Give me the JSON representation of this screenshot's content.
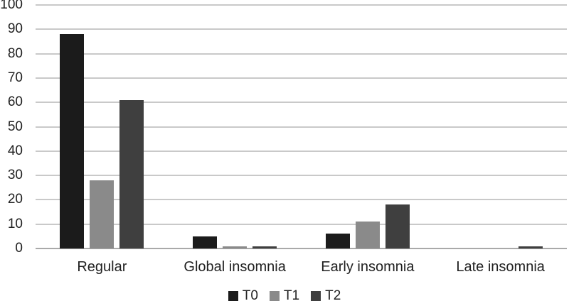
{
  "chart_data": {
    "type": "bar",
    "title": "",
    "xlabel": "",
    "ylabel": "",
    "categories": [
      "Regular",
      "Global insomnia",
      "Early insomnia",
      "Late insomnia"
    ],
    "series": [
      {
        "name": "T0",
        "color": "#1b1b1b",
        "values": [
          88,
          5,
          6,
          0
        ]
      },
      {
        "name": "T1",
        "color": "#8a8a8a",
        "values": [
          28,
          1,
          11,
          0
        ]
      },
      {
        "name": "T2",
        "color": "#3f3f3f",
        "values": [
          61,
          1,
          18,
          1
        ]
      }
    ],
    "ylim": [
      0,
      100
    ],
    "yticks": [
      0,
      10,
      20,
      30,
      40,
      50,
      60,
      70,
      80,
      90,
      100
    ],
    "grid": true,
    "legend_position": "bottom-center",
    "gridline_color": "#c9c9c9",
    "axis_line_color": "#a9a9a9",
    "text_color": "#212121",
    "background_color": "#ffffff"
  }
}
